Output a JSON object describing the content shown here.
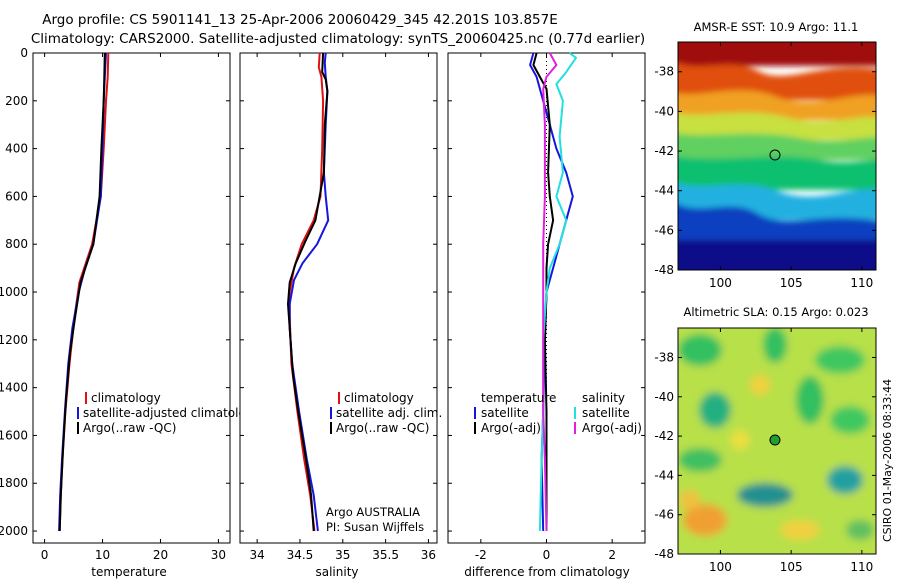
{
  "title": {
    "line1": "Argo profile: CS 5901141_13 25-Apr-2006 20060429_345 42.201S 103.857E",
    "line2": "Climatology: CARS2000. Satellite-adjusted climatology: synTS_20060425.nc (0.77d earlier)"
  },
  "credit": "CSIRO 01-May-2006 08:33:44",
  "colors": {
    "red": "#e01010",
    "blue": "#1515dd",
    "black": "#000000",
    "cyan": "#20e0e0",
    "magenta": "#e020e0"
  },
  "chart_data": [
    {
      "type": "line",
      "id": "temperature",
      "xlabel": "temperature",
      "xlim": [
        -2,
        32
      ],
      "ylim": [
        0,
        2050
      ],
      "xticks": [
        0,
        10,
        20,
        30
      ],
      "yticks": [
        0,
        200,
        400,
        600,
        800,
        1000,
        1200,
        1400,
        1600,
        1800,
        2000
      ],
      "legend": [
        "climatology",
        "satellite-adjusted climatology",
        "Argo(..raw -QC)"
      ],
      "series": [
        {
          "name": "climatology",
          "color": "red",
          "points": [
            [
              11,
              0
            ],
            [
              10.9,
              100
            ],
            [
              10.6,
              200
            ],
            [
              10.2,
              400
            ],
            [
              9.7,
              600
            ],
            [
              8.2,
              800
            ],
            [
              6,
              960
            ],
            [
              5.2,
              1100
            ],
            [
              4.3,
              1300
            ],
            [
              3.6,
              1500
            ],
            [
              3.1,
              1700
            ],
            [
              2.8,
              1850
            ],
            [
              2.6,
              2000
            ]
          ]
        },
        {
          "name": "satellite-adjusted climatology",
          "color": "blue",
          "points": [
            [
              10.6,
              0
            ],
            [
              10.4,
              100
            ],
            [
              10.2,
              200
            ],
            [
              10.0,
              400
            ],
            [
              9.7,
              600
            ],
            [
              8.4,
              800
            ],
            [
              7,
              900
            ],
            [
              5.9,
              1000
            ],
            [
              4.8,
              1150
            ],
            [
              4.1,
              1300
            ],
            [
              3.5,
              1500
            ],
            [
              3.0,
              1700
            ],
            [
              2.7,
              1850
            ],
            [
              2.5,
              2000
            ]
          ]
        },
        {
          "name": "Argo(..raw -QC)",
          "color": "black",
          "points": [
            [
              10.4,
              0
            ],
            [
              10.3,
              100
            ],
            [
              10.2,
              200
            ],
            [
              9.8,
              400
            ],
            [
              9.5,
              600
            ],
            [
              8.4,
              800
            ],
            [
              6.2,
              960
            ],
            [
              5.3,
              1100
            ],
            [
              4.4,
              1250
            ],
            [
              3.7,
              1450
            ],
            [
              3.2,
              1650
            ],
            [
              2.8,
              1850
            ],
            [
              2.6,
              2000
            ]
          ]
        }
      ]
    },
    {
      "type": "line",
      "id": "salinity",
      "xlabel": "salinity",
      "xlim": [
        33.8,
        36.1
      ],
      "ylim": [
        0,
        2050
      ],
      "xticks": [
        34,
        34.5,
        35,
        35.5,
        36
      ],
      "xticklabels": [
        "34",
        "34.5",
        "35",
        "35.5",
        "36"
      ],
      "yticks": [
        0,
        200,
        400,
        600,
        800,
        1000,
        1200,
        1400,
        1600,
        1800,
        2000
      ],
      "legend": [
        "climatology",
        "satellite adj. clim.",
        "Argo(..raw -QC)"
      ],
      "annotation": {
        "line1": "Argo AUSTRALIA",
        "line2": "PI: Susan Wijffels"
      },
      "series": [
        {
          "name": "climatology",
          "color": "red",
          "points": [
            [
              34.73,
              0
            ],
            [
              34.72,
              60
            ],
            [
              34.75,
              100
            ],
            [
              34.77,
              200
            ],
            [
              34.76,
              400
            ],
            [
              34.74,
              600
            ],
            [
              34.66,
              700
            ],
            [
              34.52,
              800
            ],
            [
              34.43,
              900
            ],
            [
              34.38,
              1000
            ],
            [
              34.38,
              1100
            ],
            [
              34.4,
              1300
            ],
            [
              34.47,
              1500
            ],
            [
              34.55,
              1700
            ],
            [
              34.62,
              1850
            ],
            [
              34.67,
              2000
            ]
          ]
        },
        {
          "name": "satellite adj. clim.",
          "color": "blue",
          "points": [
            [
              34.8,
              0
            ],
            [
              34.79,
              40
            ],
            [
              34.8,
              100
            ],
            [
              34.82,
              160
            ],
            [
              34.8,
              300
            ],
            [
              34.78,
              500
            ],
            [
              34.8,
              600
            ],
            [
              34.83,
              700
            ],
            [
              34.7,
              800
            ],
            [
              34.53,
              880
            ],
            [
              34.43,
              950
            ],
            [
              34.38,
              1050
            ],
            [
              34.38,
              1150
            ],
            [
              34.41,
              1300
            ],
            [
              34.49,
              1500
            ],
            [
              34.58,
              1700
            ],
            [
              34.66,
              1850
            ],
            [
              34.71,
              2000
            ]
          ]
        },
        {
          "name": "Argo(..raw -QC)",
          "color": "black",
          "points": [
            [
              34.77,
              0
            ],
            [
              34.76,
              80
            ],
            [
              34.8,
              110
            ],
            [
              34.82,
              160
            ],
            [
              34.79,
              300
            ],
            [
              34.78,
              500
            ],
            [
              34.72,
              620
            ],
            [
              34.68,
              700
            ],
            [
              34.56,
              790
            ],
            [
              34.45,
              880
            ],
            [
              34.38,
              960
            ],
            [
              34.36,
              1050
            ],
            [
              34.39,
              1200
            ],
            [
              34.42,
              1350
            ],
            [
              34.48,
              1500
            ],
            [
              34.57,
              1700
            ],
            [
              34.63,
              1850
            ],
            [
              34.66,
              2000
            ]
          ]
        }
      ]
    },
    {
      "type": "line",
      "id": "difference",
      "xlabel": "difference from climatology",
      "xlim": [
        -3,
        3
      ],
      "ylim": [
        0,
        2050
      ],
      "xticks": [
        -2,
        0,
        2
      ],
      "yticks": [
        0,
        200,
        400,
        600,
        800,
        1000,
        1200,
        1400,
        1600,
        1800,
        2000
      ],
      "legend_temperature": {
        "title": "temperature",
        "items": [
          "satellite",
          "Argo(-adj)"
        ]
      },
      "legend_salinity": {
        "title": "salinity",
        "items": [
          "satellite",
          "Argo(-adj)"
        ]
      },
      "series": [
        {
          "name": "temperature satellite",
          "color": "blue",
          "points": [
            [
              -0.4,
              0
            ],
            [
              -0.5,
              50
            ],
            [
              -0.3,
              100
            ],
            [
              -0.1,
              200
            ],
            [
              0.1,
              300
            ],
            [
              0.3,
              400
            ],
            [
              0.6,
              500
            ],
            [
              0.8,
              600
            ],
            [
              0.6,
              700
            ],
            [
              0.4,
              800
            ],
            [
              0.2,
              900
            ],
            [
              0,
              1000
            ],
            [
              -0.05,
              1200
            ],
            [
              -0.1,
              1500
            ],
            [
              -0.15,
              1700
            ],
            [
              -0.1,
              2000
            ]
          ]
        },
        {
          "name": "temperature Argo(-adj)",
          "color": "black",
          "points": [
            [
              -0.3,
              0
            ],
            [
              -0.4,
              50
            ],
            [
              -0.2,
              100
            ],
            [
              0,
              150
            ],
            [
              0.1,
              300
            ],
            [
              0.05,
              500
            ],
            [
              0.1,
              600
            ],
            [
              0.2,
              700
            ],
            [
              0.05,
              800
            ],
            [
              0,
              900
            ],
            [
              0,
              1000
            ],
            [
              -0.05,
              1200
            ],
            [
              0,
              1500
            ],
            [
              0,
              1700
            ],
            [
              0,
              2000
            ]
          ]
        },
        {
          "name": "salinity satellite",
          "color": "cyan",
          "points": [
            [
              0.7,
              0
            ],
            [
              0.9,
              20
            ],
            [
              0.6,
              80
            ],
            [
              0.3,
              130
            ],
            [
              0.5,
              200
            ],
            [
              0.4,
              350
            ],
            [
              0.5,
              500
            ],
            [
              0.3,
              600
            ],
            [
              0.6,
              700
            ],
            [
              0.4,
              800
            ],
            [
              0.1,
              900
            ],
            [
              0,
              1000
            ],
            [
              -0.1,
              1200
            ],
            [
              -0.1,
              1500
            ],
            [
              -0.15,
              1700
            ],
            [
              -0.2,
              2000
            ]
          ]
        },
        {
          "name": "salinity Argo(-adj)",
          "color": "magenta",
          "points": [
            [
              0.1,
              0
            ],
            [
              0.3,
              50
            ],
            [
              0,
              100
            ],
            [
              -0.1,
              150
            ],
            [
              -0.05,
              300
            ],
            [
              -0.05,
              600
            ],
            [
              -0.1,
              800
            ],
            [
              -0.1,
              1000
            ],
            [
              -0.1,
              1200
            ],
            [
              -0.1,
              1500
            ],
            [
              -0.05,
              1700
            ],
            [
              0,
              2000
            ]
          ]
        }
      ]
    },
    {
      "type": "heatmap",
      "id": "sst_map",
      "title": "AMSR-E SST: 10.9 Argo: 11.1",
      "xlim": [
        97,
        111
      ],
      "ylim": [
        -48,
        -36.5
      ],
      "xticks": [
        100,
        105,
        110
      ],
      "yticks": [
        -48,
        -46,
        -44,
        -42,
        -40,
        -38
      ],
      "argo_position": {
        "lon": 103.857,
        "lat": -42.201
      }
    },
    {
      "type": "heatmap",
      "id": "sla_map",
      "title": "Altimetric SLA: 0.15 Argo: 0.023",
      "xlim": [
        97,
        111
      ],
      "ylim": [
        -48,
        -36.5
      ],
      "xticks": [
        100,
        105,
        110
      ],
      "yticks": [
        -48,
        -46,
        -44,
        -42,
        -40,
        -38
      ],
      "argo_position": {
        "lon": 103.857,
        "lat": -42.201
      }
    }
  ]
}
